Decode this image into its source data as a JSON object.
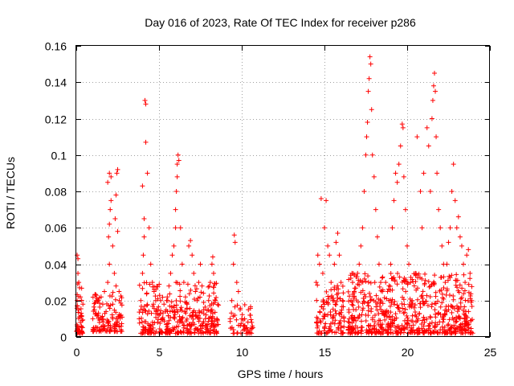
{
  "chart_data": {
    "type": "scatter",
    "title": "Day 016 of 2023, Rate Of TEC Index for receiver p286",
    "xlabel": "GPS time / hours",
    "ylabel": "ROTI / TECUs",
    "xlim": [
      0,
      25
    ],
    "ylim": [
      0,
      0.16
    ],
    "x_ticks": [
      0,
      5,
      10,
      15,
      20,
      25
    ],
    "x_tick_labels": [
      "0",
      "5",
      "10",
      "15",
      "20",
      "25"
    ],
    "y_ticks": [
      0,
      0.02,
      0.04,
      0.06,
      0.08,
      0.1,
      0.12,
      0.14,
      0.16
    ],
    "y_tick_labels": [
      "0",
      "0.02",
      "0.04",
      "0.06",
      "0.08",
      "0.1",
      "0.12",
      "0.14",
      "0.16"
    ],
    "grid": true,
    "marker": "+",
    "color": "#ff0000",
    "series": [
      {
        "name": "ROTI",
        "points": [
          [
            0.05,
            0.045
          ],
          [
            0.1,
            0.043
          ],
          [
            0.1,
            0.035
          ],
          [
            0.15,
            0.03
          ],
          [
            0.2,
            0.027
          ],
          [
            0.05,
            0.02
          ],
          [
            0.15,
            0.015
          ],
          [
            0.2,
            0.011
          ],
          [
            0.25,
            0.008
          ],
          [
            0.3,
            0.006
          ],
          [
            0.35,
            0.009
          ],
          [
            0.1,
            0.005
          ],
          [
            0.2,
            0.003
          ],
          [
            0.3,
            0.013
          ],
          [
            0.4,
            0.018
          ],
          [
            0.25,
            0.022
          ],
          [
            1.0,
            0.01
          ],
          [
            1.1,
            0.015
          ],
          [
            1.2,
            0.02
          ],
          [
            1.3,
            0.012
          ],
          [
            1.4,
            0.008
          ],
          [
            1.5,
            0.022
          ],
          [
            1.6,
            0.018
          ],
          [
            1.7,
            0.025
          ],
          [
            1.8,
            0.014
          ],
          [
            1.9,
            0.03
          ],
          [
            2.0,
            0.04
          ],
          [
            1.95,
            0.055
          ],
          [
            2.0,
            0.062
          ],
          [
            2.05,
            0.07
          ],
          [
            2.1,
            0.075
          ],
          [
            1.9,
            0.085
          ],
          [
            2.0,
            0.09
          ],
          [
            2.1,
            0.088
          ],
          [
            2.2,
            0.05
          ],
          [
            2.3,
            0.035
          ],
          [
            2.4,
            0.028
          ],
          [
            2.5,
            0.092
          ],
          [
            2.45,
            0.09
          ],
          [
            2.4,
            0.078
          ],
          [
            2.35,
            0.065
          ],
          [
            2.5,
            0.058
          ],
          [
            2.6,
            0.02
          ],
          [
            2.7,
            0.012
          ],
          [
            2.2,
            0.01
          ],
          [
            1.6,
            0.006
          ],
          [
            1.3,
            0.005
          ],
          [
            2.6,
            0.006
          ],
          [
            3.8,
            0.01
          ],
          [
            3.9,
            0.02
          ],
          [
            4.0,
            0.035
          ],
          [
            4.05,
            0.045
          ],
          [
            4.1,
            0.055
          ],
          [
            4.1,
            0.065
          ],
          [
            4.0,
            0.083
          ],
          [
            4.2,
            0.107
          ],
          [
            4.15,
            0.13
          ],
          [
            4.2,
            0.128
          ],
          [
            4.3,
            0.09
          ],
          [
            4.4,
            0.06
          ],
          [
            4.5,
            0.04
          ],
          [
            4.6,
            0.03
          ],
          [
            4.7,
            0.025
          ],
          [
            4.8,
            0.02
          ],
          [
            4.9,
            0.015
          ],
          [
            5.0,
            0.012
          ],
          [
            5.1,
            0.02
          ],
          [
            5.2,
            0.01
          ],
          [
            5.3,
            0.018
          ],
          [
            5.4,
            0.014
          ],
          [
            5.5,
            0.022
          ],
          [
            5.6,
            0.028
          ],
          [
            5.7,
            0.035
          ],
          [
            5.8,
            0.045
          ],
          [
            5.9,
            0.05
          ],
          [
            6.0,
            0.06
          ],
          [
            6.0,
            0.07
          ],
          [
            6.05,
            0.08
          ],
          [
            6.1,
            0.088
          ],
          [
            6.1,
            0.095
          ],
          [
            6.15,
            0.1
          ],
          [
            6.2,
            0.097
          ],
          [
            6.3,
            0.06
          ],
          [
            6.4,
            0.04
          ],
          [
            6.5,
            0.03
          ],
          [
            6.6,
            0.022
          ],
          [
            6.7,
            0.018
          ],
          [
            6.8,
            0.05
          ],
          [
            6.9,
            0.053
          ],
          [
            7.0,
            0.045
          ],
          [
            7.1,
            0.035
          ],
          [
            7.2,
            0.025
          ],
          [
            7.3,
            0.02
          ],
          [
            7.4,
            0.03
          ],
          [
            7.5,
            0.04
          ],
          [
            7.6,
            0.028
          ],
          [
            7.7,
            0.015
          ],
          [
            7.8,
            0.01
          ],
          [
            8.0,
            0.02
          ],
          [
            8.1,
            0.03
          ],
          [
            8.2,
            0.04
          ],
          [
            8.25,
            0.044
          ],
          [
            8.3,
            0.035
          ],
          [
            8.4,
            0.02
          ],
          [
            8.5,
            0.01
          ],
          [
            4.5,
            0.006
          ],
          [
            5.5,
            0.004
          ],
          [
            6.5,
            0.005
          ],
          [
            7.5,
            0.006
          ],
          [
            8.3,
            0.004
          ],
          [
            9.3,
            0.01
          ],
          [
            9.4,
            0.02
          ],
          [
            9.5,
            0.04
          ],
          [
            9.55,
            0.056
          ],
          [
            9.6,
            0.052
          ],
          [
            9.7,
            0.03
          ],
          [
            9.8,
            0.025
          ],
          [
            9.9,
            0.015
          ],
          [
            10.0,
            0.01
          ],
          [
            10.1,
            0.006
          ],
          [
            10.4,
            0.015
          ],
          [
            10.5,
            0.012
          ],
          [
            10.6,
            0.008
          ],
          [
            9.5,
            0.004
          ],
          [
            10.5,
            0.004
          ],
          [
            14.5,
            0.03
          ],
          [
            14.6,
            0.045
          ],
          [
            14.7,
            0.04
          ],
          [
            14.8,
            0.076
          ],
          [
            14.9,
            0.035
          ],
          [
            15.0,
            0.06
          ],
          [
            15.1,
            0.075
          ],
          [
            15.2,
            0.05
          ],
          [
            15.3,
            0.045
          ],
          [
            15.4,
            0.03
          ],
          [
            15.5,
            0.02
          ],
          [
            15.6,
            0.04
          ],
          [
            15.7,
            0.052
          ],
          [
            15.8,
            0.057
          ],
          [
            15.9,
            0.045
          ],
          [
            16.0,
            0.03
          ],
          [
            16.1,
            0.02
          ],
          [
            14.6,
            0.01
          ],
          [
            15.0,
            0.005
          ],
          [
            15.5,
            0.008
          ],
          [
            16.0,
            0.006
          ],
          [
            16.5,
            0.01
          ],
          [
            16.6,
            0.02
          ],
          [
            16.7,
            0.03
          ],
          [
            16.8,
            0.025
          ],
          [
            16.9,
            0.015
          ],
          [
            17.0,
            0.035
          ],
          [
            17.1,
            0.04
          ],
          [
            17.2,
            0.05
          ],
          [
            17.3,
            0.06
          ],
          [
            17.4,
            0.08
          ],
          [
            17.5,
            0.1
          ],
          [
            17.55,
            0.11
          ],
          [
            17.6,
            0.118
          ],
          [
            17.65,
            0.135
          ],
          [
            17.7,
            0.142
          ],
          [
            17.75,
            0.154
          ],
          [
            17.8,
            0.15
          ],
          [
            17.85,
            0.125
          ],
          [
            17.9,
            0.1
          ],
          [
            18.0,
            0.088
          ],
          [
            18.1,
            0.07
          ],
          [
            18.2,
            0.055
          ],
          [
            18.3,
            0.04
          ],
          [
            18.4,
            0.03
          ],
          [
            18.5,
            0.025
          ],
          [
            18.7,
            0.03
          ],
          [
            18.9,
            0.02
          ],
          [
            19.0,
            0.04
          ],
          [
            19.1,
            0.06
          ],
          [
            19.2,
            0.075
          ],
          [
            19.3,
            0.09
          ],
          [
            19.4,
            0.085
          ],
          [
            19.5,
            0.095
          ],
          [
            19.6,
            0.105
          ],
          [
            19.7,
            0.117
          ],
          [
            19.75,
            0.115
          ],
          [
            19.8,
            0.088
          ],
          [
            19.9,
            0.07
          ],
          [
            20.0,
            0.05
          ],
          [
            20.1,
            0.04
          ],
          [
            20.2,
            0.03
          ],
          [
            20.3,
            0.02
          ],
          [
            20.5,
            0.035
          ],
          [
            20.6,
            0.11
          ],
          [
            20.8,
            0.08
          ],
          [
            20.9,
            0.06
          ],
          [
            21.0,
            0.09
          ],
          [
            21.2,
            0.115
          ],
          [
            21.3,
            0.105
          ],
          [
            21.4,
            0.08
          ],
          [
            21.5,
            0.12
          ],
          [
            21.55,
            0.13
          ],
          [
            21.6,
            0.138
          ],
          [
            21.65,
            0.145
          ],
          [
            21.7,
            0.135
          ],
          [
            21.75,
            0.11
          ],
          [
            21.8,
            0.09
          ],
          [
            21.9,
            0.07
          ],
          [
            22.0,
            0.06
          ],
          [
            22.1,
            0.05
          ],
          [
            22.2,
            0.04
          ],
          [
            22.3,
            0.03
          ],
          [
            22.4,
            0.04
          ],
          [
            22.5,
            0.052
          ],
          [
            22.6,
            0.06
          ],
          [
            22.7,
            0.08
          ],
          [
            22.8,
            0.095
          ],
          [
            22.9,
            0.075
          ],
          [
            23.0,
            0.06
          ],
          [
            23.1,
            0.066
          ],
          [
            23.2,
            0.055
          ],
          [
            23.3,
            0.05
          ],
          [
            23.4,
            0.04
          ],
          [
            23.5,
            0.03
          ],
          [
            23.6,
            0.045
          ],
          [
            23.7,
            0.048
          ],
          [
            23.8,
            0.035
          ],
          [
            23.9,
            0.02
          ],
          [
            17.0,
            0.005
          ],
          [
            18.0,
            0.006
          ],
          [
            19.0,
            0.004
          ],
          [
            20.0,
            0.005
          ],
          [
            21.0,
            0.006
          ],
          [
            22.0,
            0.004
          ],
          [
            23.0,
            0.005
          ],
          [
            17.5,
            0.012
          ],
          [
            18.5,
            0.014
          ],
          [
            19.5,
            0.016
          ],
          [
            20.5,
            0.012
          ],
          [
            21.5,
            0.018
          ],
          [
            22.5,
            0.015
          ],
          [
            23.5,
            0.012
          ]
        ]
      }
    ],
    "dense_bands": [
      {
        "x_range": [
          0.0,
          0.4
        ],
        "y_range": [
          0.002,
          0.03
        ],
        "count": 40
      },
      {
        "x_range": [
          1.0,
          2.8
        ],
        "y_range": [
          0.003,
          0.025
        ],
        "count": 110
      },
      {
        "x_range": [
          3.8,
          8.6
        ],
        "y_range": [
          0.002,
          0.03
        ],
        "count": 340
      },
      {
        "x_range": [
          9.3,
          10.7
        ],
        "y_range": [
          0.002,
          0.018
        ],
        "count": 45
      },
      {
        "x_range": [
          14.5,
          16.2
        ],
        "y_range": [
          0.002,
          0.03
        ],
        "count": 110
      },
      {
        "x_range": [
          16.4,
          24.0
        ],
        "y_range": [
          0.002,
          0.035
        ],
        "count": 620
      }
    ]
  }
}
